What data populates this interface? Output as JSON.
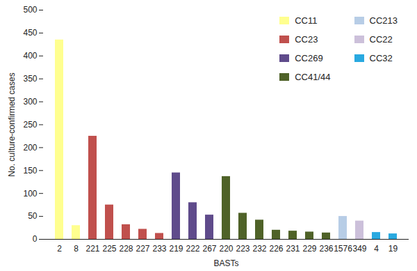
{
  "chart_data": {
    "type": "bar",
    "x_label": "BASTs",
    "y_label": "No. culture-confirmed cases",
    "categories": [
      "2",
      "8",
      "221",
      "225",
      "228",
      "227",
      "233",
      "219",
      "222",
      "267",
      "220",
      "223",
      "232",
      "226",
      "231",
      "229",
      "236",
      "1576",
      "349",
      "4",
      "19"
    ],
    "series": [
      {
        "name": "CC11",
        "color": "#ffff8f",
        "values": [
          435,
          30,
          null,
          null,
          null,
          null,
          null,
          null,
          null,
          null,
          null,
          null,
          null,
          null,
          null,
          null,
          null,
          null,
          null,
          null,
          null
        ]
      },
      {
        "name": "CC23",
        "color": "#c0504d",
        "values": [
          null,
          null,
          225,
          75,
          32,
          22,
          13,
          null,
          null,
          null,
          null,
          null,
          null,
          null,
          null,
          null,
          null,
          null,
          null,
          null,
          null
        ]
      },
      {
        "name": "CC269",
        "color": "#5f4b8b",
        "values": [
          null,
          null,
          null,
          null,
          null,
          null,
          null,
          145,
          80,
          53,
          null,
          null,
          null,
          null,
          null,
          null,
          null,
          null,
          null,
          null,
          null
        ]
      },
      {
        "name": "CC41/44",
        "color": "#4f6228",
        "values": [
          null,
          null,
          null,
          null,
          null,
          null,
          null,
          null,
          null,
          null,
          137,
          57,
          42,
          20,
          18,
          16,
          14,
          null,
          null,
          null,
          null
        ]
      },
      {
        "name": "CC213",
        "color": "#b7cde6",
        "values": [
          null,
          null,
          null,
          null,
          null,
          null,
          null,
          null,
          null,
          null,
          null,
          null,
          null,
          null,
          null,
          null,
          null,
          50,
          null,
          null,
          null
        ]
      },
      {
        "name": "CC22",
        "color": "#ccc0da",
        "values": [
          null,
          null,
          null,
          null,
          null,
          null,
          null,
          null,
          null,
          null,
          null,
          null,
          null,
          null,
          null,
          null,
          null,
          null,
          40,
          null,
          null
        ]
      },
      {
        "name": "CC32",
        "color": "#29a9e0",
        "values": [
          null,
          null,
          null,
          null,
          null,
          null,
          null,
          null,
          null,
          null,
          null,
          null,
          null,
          null,
          null,
          null,
          null,
          null,
          null,
          15,
          12
        ]
      }
    ],
    "ylim": [
      0,
      500
    ],
    "yticks": [
      0,
      50,
      100,
      150,
      200,
      250,
      300,
      350,
      400,
      450,
      500
    ],
    "legend": "top-right",
    "grid": false
  }
}
